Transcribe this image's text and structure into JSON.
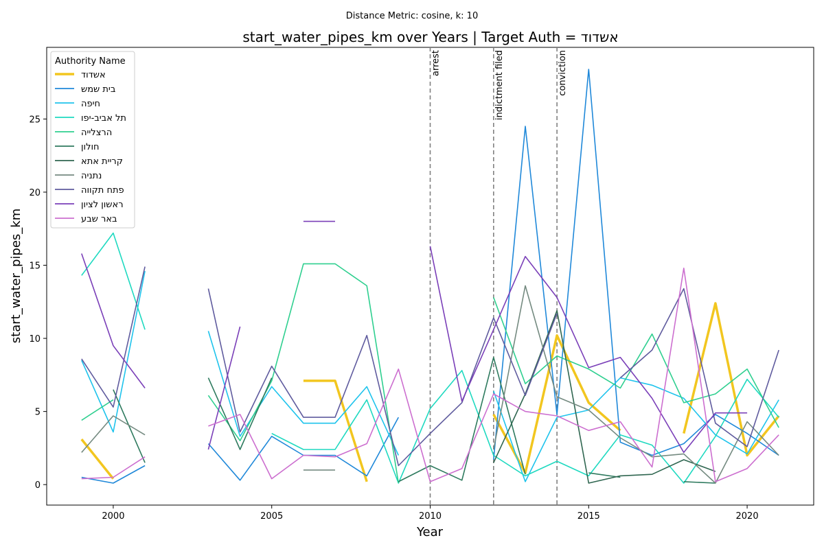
{
  "chart_data": {
    "type": "line",
    "suptitle": "Distance Metric: cosine, k: 10",
    "title": "start_water_pipes_km over Years | Target Auth = אשדוד",
    "xlabel": "Year",
    "ylabel": "start_water_pipes_km",
    "xlim": [
      1997.9,
      2022.1
    ],
    "ylim": [
      -1.4,
      29.9
    ],
    "x_ticks": [
      2000,
      2005,
      2010,
      2015,
      2020
    ],
    "y_ticks": [
      0,
      5,
      10,
      15,
      20,
      25
    ],
    "grid": false,
    "legend": {
      "title": "Authority Name",
      "location": "upper-left"
    },
    "events": [
      {
        "x": 2010,
        "label": "arrest"
      },
      {
        "x": 2012,
        "label": "indictment filed"
      },
      {
        "x": 2014,
        "label": "conviction"
      }
    ],
    "series": [
      {
        "name": "אשדוד",
        "color": "#f2c61f",
        "width": 3.5,
        "points": [
          [
            1999,
            3.1
          ],
          [
            2000,
            0.4
          ],
          [
            2006,
            7.1
          ],
          [
            2007,
            7.1
          ],
          [
            2008,
            0.2
          ],
          [
            2012,
            4.8
          ],
          [
            2013,
            0.8
          ],
          [
            2014,
            10.2
          ],
          [
            2015,
            5.6
          ],
          [
            2016,
            3.7
          ],
          [
            2018,
            3.5
          ],
          [
            2019,
            12.4
          ],
          [
            2020,
            2.0
          ],
          [
            2021,
            4.7
          ]
        ]
      },
      {
        "name": "בית שמש",
        "color": "#1f88d9",
        "width": 1.6,
        "points": [
          [
            1999,
            0.5
          ],
          [
            2000,
            0.1
          ],
          [
            2001,
            1.3
          ],
          [
            2003,
            2.8
          ],
          [
            2004,
            0.3
          ],
          [
            2005,
            3.3
          ],
          [
            2006,
            2.0
          ],
          [
            2007,
            2.0
          ],
          [
            2008,
            0.6
          ],
          [
            2009,
            4.6
          ],
          [
            2012,
            1.7
          ],
          [
            2013,
            24.5
          ],
          [
            2014,
            4.8
          ],
          [
            2015,
            28.4
          ],
          [
            2016,
            2.9
          ],
          [
            2017,
            2.0
          ],
          [
            2018,
            2.8
          ],
          [
            2019,
            4.8
          ],
          [
            2020,
            3.5
          ],
          [
            2021,
            2.0
          ]
        ]
      },
      {
        "name": "חיפה",
        "color": "#1ec3ec",
        "width": 1.6,
        "points": [
          [
            1999,
            8.5
          ],
          [
            2000,
            3.6
          ],
          [
            2001,
            14.6
          ],
          [
            2003,
            10.5
          ],
          [
            2004,
            3.3
          ],
          [
            2005,
            6.7
          ],
          [
            2006,
            4.2
          ],
          [
            2007,
            4.2
          ],
          [
            2008,
            6.7
          ],
          [
            2009,
            2.0
          ],
          [
            2012,
            6.4
          ],
          [
            2013,
            0.2
          ],
          [
            2014,
            4.6
          ],
          [
            2015,
            5.1
          ],
          [
            2016,
            7.3
          ],
          [
            2017,
            6.8
          ],
          [
            2018,
            5.9
          ],
          [
            2019,
            3.4
          ],
          [
            2020,
            2.1
          ],
          [
            2021,
            5.8
          ]
        ]
      },
      {
        "name": "תל אביב-יפו",
        "color": "#1ed9c0",
        "width": 1.6,
        "points": [
          [
            1999,
            14.3
          ],
          [
            2000,
            17.2
          ],
          [
            2001,
            10.6
          ],
          [
            2005,
            3.5
          ],
          [
            2006,
            2.4
          ],
          [
            2007,
            2.4
          ],
          [
            2008,
            5.8
          ],
          [
            2009,
            0.1
          ],
          [
            2010,
            5.2
          ],
          [
            2011,
            7.8
          ],
          [
            2012,
            2.0
          ],
          [
            2013,
            0.6
          ],
          [
            2014,
            1.6
          ],
          [
            2015,
            0.6
          ],
          [
            2016,
            3.4
          ],
          [
            2017,
            2.7
          ],
          [
            2018,
            0.1
          ],
          [
            2019,
            3.3
          ],
          [
            2020,
            7.2
          ],
          [
            2021,
            4.6
          ]
        ]
      },
      {
        "name": "הרצלייה",
        "color": "#2ecf8f",
        "width": 1.6,
        "points": [
          [
            1999,
            4.4
          ],
          [
            2000,
            5.8
          ],
          [
            2003,
            6.1
          ],
          [
            2004,
            3.0
          ],
          [
            2005,
            7.1
          ],
          [
            2006,
            15.1
          ],
          [
            2007,
            15.1
          ],
          [
            2008,
            13.6
          ],
          [
            2009,
            0.1
          ],
          [
            2012,
            12.8
          ],
          [
            2013,
            6.9
          ],
          [
            2014,
            8.8
          ],
          [
            2015,
            7.9
          ],
          [
            2016,
            6.6
          ],
          [
            2017,
            10.3
          ],
          [
            2018,
            5.6
          ],
          [
            2019,
            6.2
          ],
          [
            2020,
            7.9
          ],
          [
            2021,
            3.9
          ]
        ]
      },
      {
        "name": "חולון",
        "color": "#2e7a5e",
        "width": 1.6,
        "points": [
          [
            2000,
            6.5
          ],
          [
            2001,
            1.5
          ],
          [
            2003,
            7.3
          ],
          [
            2004,
            2.4
          ],
          [
            2005,
            7.3
          ],
          [
            2009,
            0.2
          ],
          [
            2010,
            1.3
          ],
          [
            2011,
            0.3
          ],
          [
            2012,
            8.7
          ],
          [
            2013,
            0.7
          ],
          [
            2015,
            0.8
          ],
          [
            2016,
            0.5
          ],
          [
            2018,
            0.2
          ],
          [
            2019,
            0.1
          ]
        ]
      },
      {
        "name": "קריית אתא",
        "color": "#2f6650",
        "width": 1.6,
        "points": [
          [
            2012,
            1.5
          ],
          [
            2013,
            6.2
          ],
          [
            2014,
            11.9
          ],
          [
            2015,
            0.1
          ],
          [
            2016,
            0.6
          ],
          [
            2017,
            0.7
          ],
          [
            2018,
            1.7
          ],
          [
            2019,
            0.9
          ]
        ]
      },
      {
        "name": "נתניה",
        "color": "#748a80",
        "width": 1.6,
        "points": [
          [
            1999,
            2.2
          ],
          [
            2000,
            4.7
          ],
          [
            2001,
            3.4
          ],
          [
            2006,
            1.0
          ],
          [
            2007,
            1.0
          ],
          [
            2012,
            2.4
          ],
          [
            2013,
            13.6
          ],
          [
            2014,
            6.0
          ],
          [
            2015,
            5.1
          ],
          [
            2016,
            3.2
          ],
          [
            2017,
            1.9
          ],
          [
            2018,
            2.1
          ],
          [
            2019,
            0.1
          ],
          [
            2020,
            4.3
          ],
          [
            2021,
            2.0
          ]
        ]
      },
      {
        "name": "פתח תקווה",
        "color": "#5f5b9e",
        "width": 1.6,
        "points": [
          [
            1999,
            8.6
          ],
          [
            2000,
            5.3
          ],
          [
            2001,
            14.9
          ],
          [
            2003,
            13.4
          ],
          [
            2004,
            3.6
          ],
          [
            2005,
            8.1
          ],
          [
            2006,
            4.6
          ],
          [
            2007,
            4.6
          ],
          [
            2008,
            10.2
          ],
          [
            2009,
            1.3
          ],
          [
            2010,
            3.5
          ],
          [
            2011,
            5.6
          ],
          [
            2012,
            11.4
          ],
          [
            2013,
            6.1
          ],
          [
            2014,
            11.7
          ],
          [
            2016,
            7.3
          ],
          [
            2017,
            9.2
          ],
          [
            2018,
            13.4
          ],
          [
            2019,
            4.2
          ],
          [
            2020,
            2.6
          ],
          [
            2021,
            9.2
          ]
        ]
      },
      {
        "name": "ראשון לציון",
        "color": "#7a3fb8",
        "width": 1.6,
        "points": [
          [
            1999,
            15.8
          ],
          [
            2000,
            9.5
          ],
          [
            2001,
            6.6
          ],
          [
            2003,
            2.4
          ],
          [
            2004,
            10.8
          ],
          [
            2006,
            18.0
          ],
          [
            2007,
            18.0
          ],
          [
            2010,
            16.3
          ],
          [
            2011,
            5.7
          ],
          [
            2012,
            10.6
          ],
          [
            2013,
            15.6
          ],
          [
            2014,
            12.8
          ],
          [
            2015,
            8.0
          ],
          [
            2016,
            8.7
          ],
          [
            2017,
            5.9
          ],
          [
            2018,
            2.2
          ],
          [
            2019,
            4.9
          ],
          [
            2020,
            4.9
          ]
        ]
      },
      {
        "name": "באר שבע",
        "color": "#cc6ecf",
        "width": 1.6,
        "points": [
          [
            1999,
            0.4
          ],
          [
            2000,
            0.5
          ],
          [
            2001,
            1.9
          ],
          [
            2003,
            4.0
          ],
          [
            2004,
            4.8
          ],
          [
            2005,
            0.4
          ],
          [
            2006,
            2.0
          ],
          [
            2007,
            1.9
          ],
          [
            2008,
            2.8
          ],
          [
            2009,
            7.9
          ],
          [
            2010,
            0.2
          ],
          [
            2011,
            1.1
          ],
          [
            2012,
            6.2
          ],
          [
            2013,
            5.0
          ],
          [
            2014,
            4.7
          ],
          [
            2015,
            3.7
          ],
          [
            2016,
            4.3
          ],
          [
            2017,
            1.2
          ],
          [
            2018,
            14.8
          ],
          [
            2019,
            0.2
          ],
          [
            2020,
            1.1
          ],
          [
            2021,
            3.4
          ]
        ]
      }
    ]
  }
}
